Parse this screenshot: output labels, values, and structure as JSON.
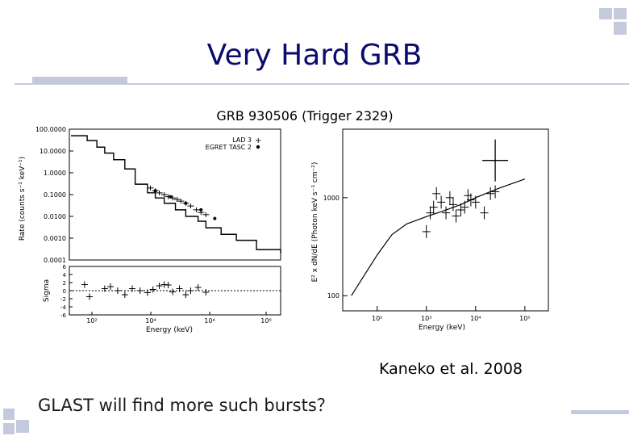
{
  "slide": {
    "title": "Very Hard GRB",
    "citation": "Kaneko et al. 2008",
    "question": "GLAST will find more such bursts？"
  },
  "colors": {
    "title": "#0b0b6e",
    "accent": "#c4c9dc",
    "ink": "#000000"
  },
  "chart_data": [
    {
      "type": "line",
      "title": "GRB 930506 (Trigger 2329)",
      "panel": "count-rate",
      "xlabel": "",
      "ylabel": "Rate (counts s⁻¹ keV⁻¹)",
      "xscale": "log",
      "yscale": "log",
      "xlim": [
        20,
        300000
      ],
      "ylim": [
        0.0001,
        100
      ],
      "ytick_labels": [
        "100.0000",
        "10.0000",
        "1.0000",
        "0.1000",
        "0.0100",
        "0.0010",
        "0.0001"
      ],
      "legend": [
        "LAD 3",
        "EGRET TASC 2"
      ],
      "series": [
        {
          "name": "model",
          "x": [
            30,
            45,
            70,
            100,
            150,
            250,
            400,
            700,
            1000,
            1500,
            2500,
            4000,
            7000,
            10000,
            20000,
            40000,
            100000,
            300000
          ],
          "y": [
            50,
            30,
            15,
            8,
            4,
            1.5,
            0.3,
            0.12,
            0.07,
            0.04,
            0.02,
            0.01,
            0.006,
            0.003,
            0.0015,
            0.0008,
            0.0003,
            0.0002
          ]
        },
        {
          "name": "LAD 3",
          "x": [
            800,
            1000,
            1200,
            1500,
            1800,
            2200,
            2700,
            3200,
            4000,
            5000,
            6500,
            8000,
            10000
          ],
          "y": [
            0.2,
            0.15,
            0.12,
            0.1,
            0.08,
            0.07,
            0.06,
            0.05,
            0.04,
            0.03,
            0.02,
            0.015,
            0.012
          ]
        },
        {
          "name": "EGRET TASC 2",
          "x": [
            1000,
            2000,
            4000,
            8000,
            15000
          ],
          "y": [
            0.15,
            0.08,
            0.04,
            0.02,
            0.008
          ]
        }
      ]
    },
    {
      "type": "scatter",
      "panel": "residuals",
      "xlabel": "Energy (keV)",
      "ylabel": "Sigma",
      "xscale": "log",
      "xlim": [
        20,
        300000
      ],
      "ylim": [
        -6,
        6
      ],
      "x_tick_labels": [
        "10²",
        "10⁴",
        "10⁴",
        "10⁶"
      ],
      "y_tick_labels": [
        "6",
        "4",
        "2",
        "0",
        "-2",
        "-4",
        "-6"
      ],
      "x": [
        40,
        50,
        100,
        130,
        180,
        250,
        350,
        500,
        700,
        900,
        1200,
        1500,
        1800,
        2200,
        3000,
        4000,
        5000,
        7000,
        10000
      ],
      "y": [
        1.5,
        -1.5,
        0.5,
        1,
        0,
        -1,
        0.5,
        0,
        -0.5,
        0.3,
        1.2,
        1.5,
        1.4,
        -0.3,
        0.5,
        -1,
        0,
        0.8,
        -0.4
      ]
    },
    {
      "type": "scatter",
      "panel": "nuFnu",
      "xlabel": "Energy (keV)",
      "ylabel": "E² x dN/dE (Photon keV s⁻¹ cm⁻²)",
      "xscale": "log",
      "yscale": "log",
      "xlim": [
        20,
        300000
      ],
      "ylim": [
        70,
        5000
      ],
      "x_tick_labels": [
        "10²",
        "10³",
        "10⁴",
        "10⁵"
      ],
      "y_tick_labels": [
        "1000",
        "100"
      ],
      "model": {
        "x": [
          30,
          50,
          100,
          200,
          400,
          700,
          1000,
          2000,
          5000,
          10000,
          30000,
          100000
        ],
        "y": [
          100,
          150,
          260,
          420,
          540,
          600,
          640,
          720,
          850,
          1000,
          1250,
          1550
        ]
      },
      "points": {
        "x": [
          25000,
          1000,
          1200,
          1400,
          1600,
          2000,
          2500,
          3000,
          3500,
          4000,
          5000,
          6000,
          7000,
          8000,
          10000,
          15000,
          20000,
          25000
        ],
        "y": [
          2400,
          450,
          700,
          800,
          1100,
          900,
          700,
          1000,
          850,
          650,
          750,
          800,
          1050,
          950,
          900,
          700,
          1100,
          1150
        ]
      }
    }
  ]
}
